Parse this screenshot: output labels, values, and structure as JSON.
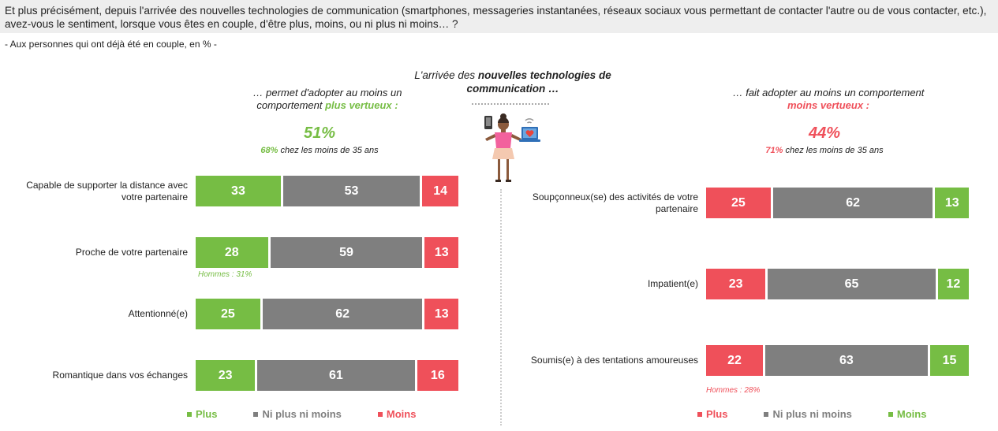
{
  "question": "Et plus précisément, depuis l'arrivée des nouvelles technologies de communication (smartphones, messageries instantanées, réseaux sociaux vous permettant de contacter l'autre ou de vous contacter, etc.), avez-vous le sentiment, lorsque vous êtes en couple, d'être plus, moins, ou ni plus ni moins… ?",
  "base": "- Aux personnes qui ont déjà été en couple, en % -",
  "center": {
    "title_pre": "L'arrivée des ",
    "title_bold": "nouvelles technologies de communication …"
  },
  "colors": {
    "green": "#76bd44",
    "grey": "#7f7f7f",
    "red": "#ef505a"
  },
  "left": {
    "subtitle_pre": "… permet d'adopter au moins un comportement ",
    "subtitle_em": "plus vertueux :",
    "pct": "51%",
    "pct_sub_bold": "68%",
    "pct_sub_rest": " chez les moins de 35 ans",
    "note": "Hommes : 31%",
    "legend": {
      "plus": "Plus",
      "neutral": "Ni plus ni moins",
      "moins": "Moins"
    }
  },
  "right": {
    "subtitle_pre": "… fait adopter au moins un comportement ",
    "subtitle_em": "moins vertueux :",
    "pct": "44%",
    "pct_sub_bold": "71%",
    "pct_sub_rest": " chez les moins de 35 ans",
    "note": "Hommes : 28%",
    "legend": {
      "plus": "Plus",
      "neutral": "Ni plus ni moins",
      "moins": "Moins"
    }
  },
  "chart_data": [
    {
      "type": "bar",
      "stacked": true,
      "orientation": "horizontal",
      "categories": [
        "Capable de supporter la distance avec votre partenaire",
        "Proche de votre partenaire",
        "Attentionné(e)",
        "Romantique dans vos échanges"
      ],
      "series": [
        {
          "name": "Plus",
          "color": "#76bd44",
          "values": [
            33,
            28,
            25,
            23
          ]
        },
        {
          "name": "Ni plus ni moins",
          "color": "#7f7f7f",
          "values": [
            53,
            59,
            62,
            61
          ]
        },
        {
          "name": "Moins",
          "color": "#ef505a",
          "values": [
            14,
            13,
            13,
            16
          ]
        }
      ],
      "unit": "%"
    },
    {
      "type": "bar",
      "stacked": true,
      "orientation": "horizontal",
      "categories": [
        "Soupçonneux(se) des activités de votre partenaire",
        "Impatient(e)",
        "Soumis(e) à des tentations amoureuses"
      ],
      "series": [
        {
          "name": "Plus",
          "color": "#ef505a",
          "values": [
            25,
            23,
            22
          ]
        },
        {
          "name": "Ni plus ni moins",
          "color": "#7f7f7f",
          "values": [
            62,
            65,
            63
          ]
        },
        {
          "name": "Moins",
          "color": "#76bd44",
          "values": [
            13,
            12,
            15
          ]
        }
      ],
      "unit": "%"
    }
  ]
}
